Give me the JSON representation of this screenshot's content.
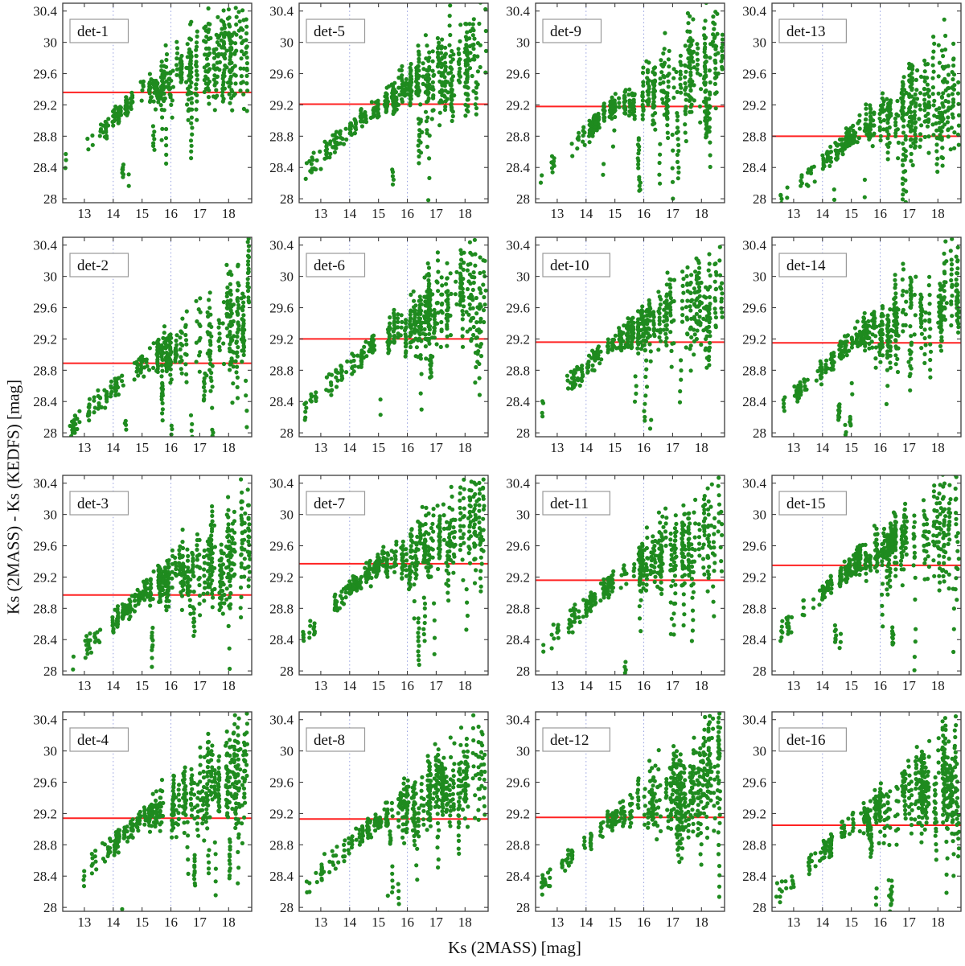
{
  "chart_data": {
    "type": "scatter",
    "title": "",
    "xlabel": "Ks (2MASS) [mag]",
    "ylabel": "Ks (2MASS) - Ks (KEDFS) [mag]",
    "grid_layout": {
      "rows": 4,
      "cols": 4,
      "order": "column-major: det-1..det-4 in first column, det-5..det-8 second, det-9..det-12 third, det-13..det-16 fourth"
    },
    "xlim": [
      12.25,
      18.8
    ],
    "ylim": [
      27.95,
      30.5
    ],
    "x_ticks": [
      13,
      14,
      15,
      16,
      17,
      18
    ],
    "y_ticks": [
      28,
      28.4,
      28.8,
      29.2,
      29.6,
      30,
      30.4
    ],
    "x_gridlines": [
      14,
      16
    ],
    "grid_on": true,
    "legend": "none",
    "colors": {
      "marker": "#1f8b1f",
      "zeropoint_line": "#ff2222",
      "gridline": "#96a0e0",
      "axis": "#3c3c3c",
      "tick_label": "#1a1a1a",
      "panel_label_border": "#999999"
    },
    "panels": [
      {
        "label": "det-1",
        "zeropoint_offset": 29.36,
        "seed": 11
      },
      {
        "label": "det-2",
        "zeropoint_offset": 28.89,
        "seed": 23
      },
      {
        "label": "det-3",
        "zeropoint_offset": 28.97,
        "seed": 37
      },
      {
        "label": "det-4",
        "zeropoint_offset": 29.14,
        "seed": 41
      },
      {
        "label": "det-5",
        "zeropoint_offset": 29.21,
        "seed": 53
      },
      {
        "label": "det-6",
        "zeropoint_offset": 29.2,
        "seed": 67
      },
      {
        "label": "det-7",
        "zeropoint_offset": 29.37,
        "seed": 71
      },
      {
        "label": "det-8",
        "zeropoint_offset": 29.13,
        "seed": 83
      },
      {
        "label": "det-9",
        "zeropoint_offset": 29.18,
        "seed": 97
      },
      {
        "label": "det-10",
        "zeropoint_offset": 29.16,
        "seed": 103
      },
      {
        "label": "det-11",
        "zeropoint_offset": 29.16,
        "seed": 113
      },
      {
        "label": "det-12",
        "zeropoint_offset": 29.15,
        "seed": 127
      },
      {
        "label": "det-13",
        "zeropoint_offset": 28.8,
        "seed": 131
      },
      {
        "label": "det-14",
        "zeropoint_offset": 29.15,
        "seed": 139
      },
      {
        "label": "det-15",
        "zeropoint_offset": 29.35,
        "seed": 149
      },
      {
        "label": "det-16",
        "zeropoint_offset": 29.05,
        "seed": 157
      }
    ],
    "scatter_model": {
      "note": "Each panel holds ~600 repeated-epoch measurements forming vertical streaks per star; the red horizontal line marks the panel zero-point offset. Points rise from (x~12.3, zp-0.9) to the zero-point near x~15, then spread increasingly up to ~30.4 and down to 28 at faint magnitudes. Regenerated deterministically from these fitted parameters.",
      "n_clusters": 95,
      "x_cluster_range": [
        12.3,
        18.72
      ],
      "x_bias_exponent": 0.68,
      "bright_slope_per_mag": 0.34,
      "faint_slope_per_mag": 0.17,
      "sigma_base": 0.055,
      "sigma_faint_per_mag": 0.115,
      "outlier_probability": 0.1,
      "outlier_depth_range": [
        0.3,
        1.25
      ],
      "cluster_size_range": [
        2,
        14
      ],
      "marker_radius": 2.6
    }
  }
}
